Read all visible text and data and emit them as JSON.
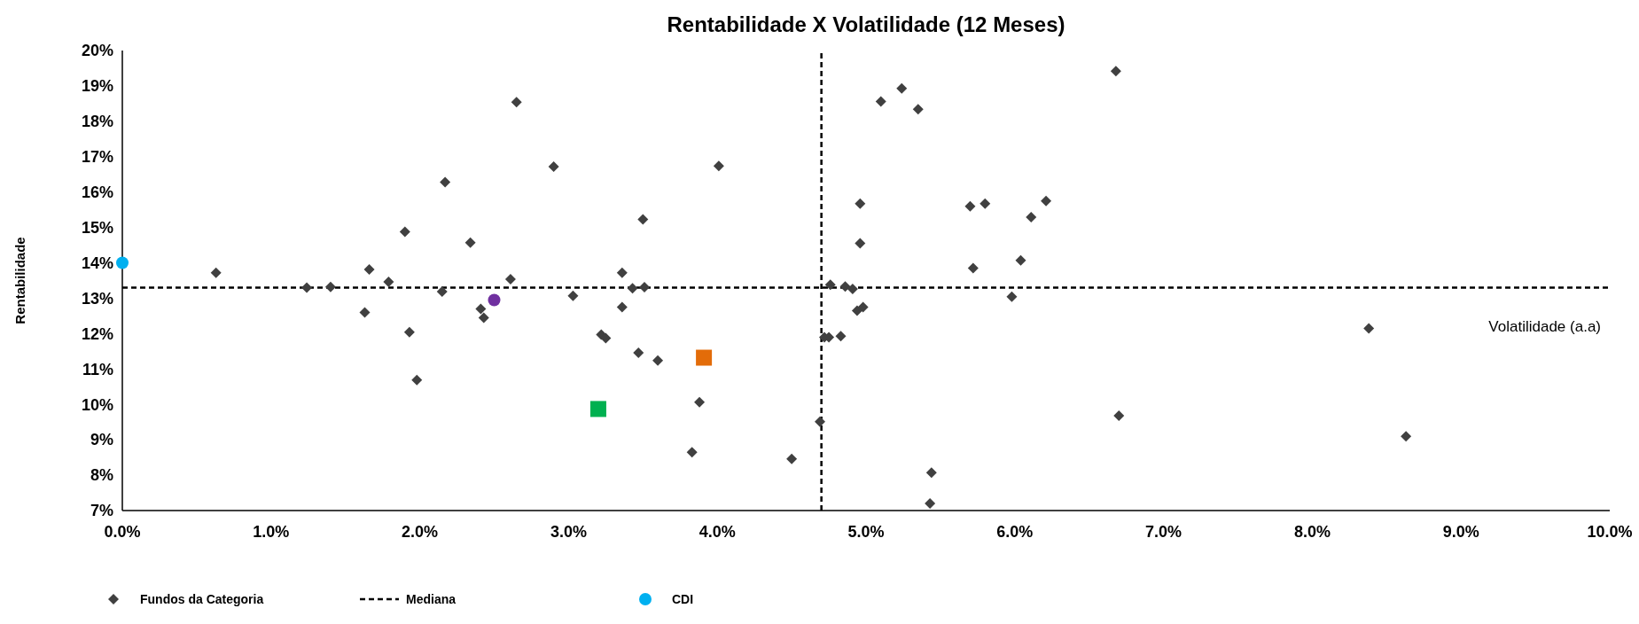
{
  "chart_data": {
    "type": "scatter",
    "title": "Rentabilidade X Volatilidade (12 Meses)",
    "xlabel": "Volatilidade (a.a)",
    "ylabel": "Rentabilidade",
    "xlim": [
      0,
      10
    ],
    "xticks": [
      {
        "value": 0,
        "label": "0.0%"
      },
      {
        "value": 1,
        "label": "1.0%"
      },
      {
        "value": 2,
        "label": "2.0%"
      },
      {
        "value": 3,
        "label": "3.0%"
      },
      {
        "value": 4,
        "label": "4.0%"
      },
      {
        "value": 5,
        "label": "5.0%"
      },
      {
        "value": 6,
        "label": "6.0%"
      },
      {
        "value": 7,
        "label": "7.0%"
      },
      {
        "value": 8,
        "label": "8.0%"
      },
      {
        "value": 9,
        "label": "9.0%"
      },
      {
        "value": 10,
        "label": "10.0%"
      }
    ],
    "ylim": [
      7,
      20
    ],
    "yticks": [
      {
        "value": 7,
        "label": "7%"
      },
      {
        "value": 8,
        "label": "8%"
      },
      {
        "value": 9,
        "label": "9%"
      },
      {
        "value": 10,
        "label": "10%"
      },
      {
        "value": 11,
        "label": "11%"
      },
      {
        "value": 12,
        "label": "12%"
      },
      {
        "value": 13,
        "label": "13%"
      },
      {
        "value": 14,
        "label": "14%"
      },
      {
        "value": 15,
        "label": "15%"
      },
      {
        "value": 16,
        "label": "16%"
      },
      {
        "value": 17,
        "label": "17%"
      },
      {
        "value": 18,
        "label": "18%"
      },
      {
        "value": 19,
        "label": "19%"
      },
      {
        "value": 20,
        "label": "20%"
      }
    ],
    "legend": "bottom",
    "series": [
      {
        "name": "Fundos da Categoria",
        "color": "#404040",
        "marker": "diamond",
        "x": [
          0.63,
          1.24,
          1.4,
          1.66,
          1.79,
          1.63,
          1.9,
          1.93,
          1.98,
          2.17,
          2.15,
          2.34,
          2.41,
          2.43,
          2.61,
          2.65,
          2.9,
          3.03,
          3.22,
          3.25,
          3.5,
          3.36,
          3.43,
          3.51,
          3.36,
          3.47,
          3.6,
          3.88,
          3.83,
          4.01,
          4.5,
          4.69,
          4.76,
          4.86,
          4.91,
          4.94,
          4.98,
          4.72,
          4.75,
          4.83,
          4.96,
          4.96,
          5.1,
          5.24,
          5.35,
          5.44,
          5.43,
          5.7,
          5.8,
          5.72,
          6.04,
          5.98,
          6.11,
          6.21,
          6.68,
          6.7,
          8.38,
          8.63
        ],
        "values": [
          13.72,
          13.3,
          13.32,
          13.81,
          13.46,
          12.6,
          14.88,
          12.04,
          10.69,
          16.28,
          13.19,
          14.57,
          12.7,
          12.45,
          13.54,
          18.54,
          16.72,
          13.07,
          11.97,
          11.87,
          15.23,
          13.72,
          13.28,
          13.31,
          12.75,
          11.46,
          11.24,
          10.06,
          8.65,
          16.74,
          8.46,
          9.51,
          13.38,
          13.33,
          13.26,
          12.65,
          12.75,
          11.9,
          11.9,
          11.93,
          15.67,
          14.55,
          18.56,
          18.93,
          18.34,
          8.07,
          7.2,
          15.6,
          15.67,
          13.85,
          14.07,
          13.04,
          15.29,
          15.75,
          19.42,
          9.68,
          12.15,
          9.1
        ]
      },
      {
        "color": "#7030a0",
        "marker": "circle",
        "x": [
          2.5
        ],
        "values": [
          12.95
        ]
      },
      {
        "name": "CDI",
        "color": "#00b0f0",
        "marker": "circle",
        "x": [
          0
        ],
        "values": [
          14
        ]
      },
      {
        "color": "#00b050",
        "marker": "square",
        "x": [
          3.2
        ],
        "values": [
          9.87
        ]
      },
      {
        "color": "#e36c09",
        "marker": "square",
        "x": [
          3.91
        ],
        "values": [
          11.32
        ]
      }
    ],
    "ref_lines": [
      {
        "axis": "x",
        "value": 4.7,
        "line_style": "dashed",
        "color": "#000000"
      },
      {
        "axis": "y",
        "value": 13.3,
        "label": "Mediana",
        "line_style": "dashed",
        "color": "#000000"
      }
    ]
  }
}
